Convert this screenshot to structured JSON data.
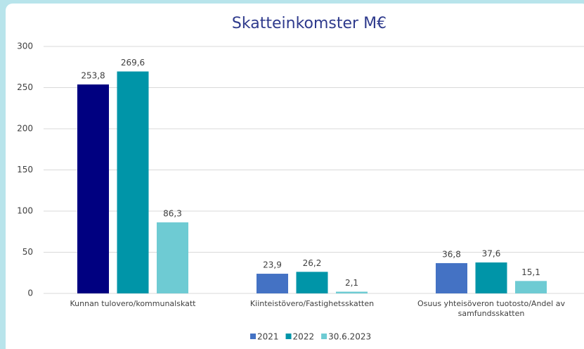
{
  "chart_data": {
    "type": "bar",
    "title": "Skatteinkomster M€",
    "categories": [
      "Kunnan tulovero/kommunalskatt",
      "Kiinteistövero/Fastighetsskatten",
      "Osuus yhteisöveron tuotosto/Andel av samfundsskatten"
    ],
    "series": [
      {
        "name": "2021",
        "color": "#4472c4",
        "colors": [
          "#000080",
          "#4472c4",
          "#4472c4"
        ],
        "values": [
          253.8,
          23.9,
          36.8
        ],
        "value_labels": [
          "253,8",
          "23,9",
          "36,8"
        ]
      },
      {
        "name": "2022",
        "color": "#0095a8",
        "values": [
          269.6,
          26.2,
          37.6
        ],
        "value_labels": [
          "269,6",
          "26,2",
          "37,6"
        ]
      },
      {
        "name": "30.6.2023",
        "color": "#6ecbd3",
        "values": [
          86.3,
          2.1,
          15.1
        ],
        "value_labels": [
          "86,3",
          "2,1",
          "15,1"
        ]
      }
    ],
    "ylim": [
      0,
      300
    ],
    "yticks": [
      0,
      50,
      100,
      150,
      200,
      250,
      300
    ],
    "grid": true,
    "legend": "bottom"
  }
}
